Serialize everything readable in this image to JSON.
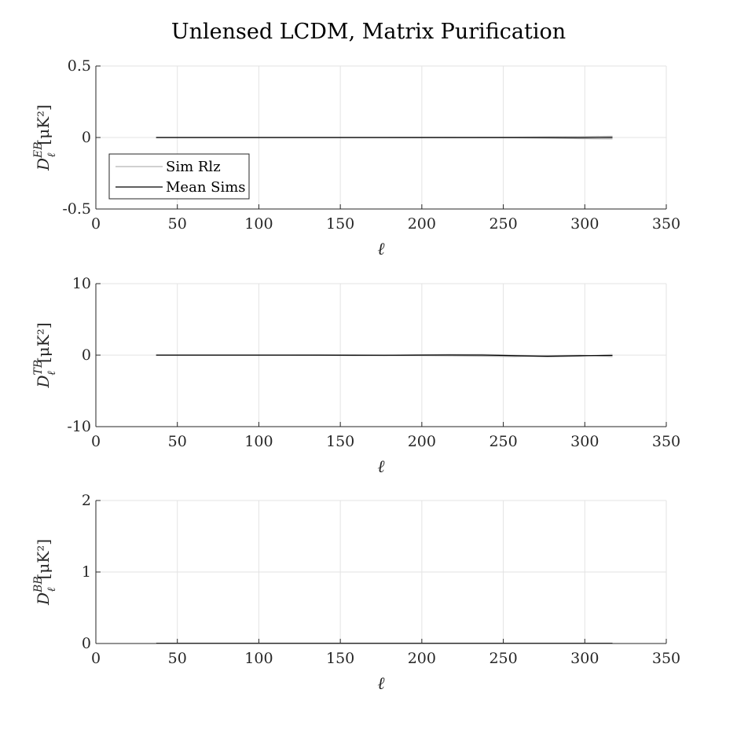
{
  "title": "Unlensed LCDM, Matrix Purification",
  "legend": {
    "placement": "inside-lower-left of top panel",
    "entries": [
      {
        "label": "Sim Rlz",
        "color": "#b3b3b3"
      },
      {
        "label": "Mean Sims",
        "color": "#000000"
      }
    ]
  },
  "colors": {
    "sim": "#b3b3b3",
    "mean": "#000000",
    "grid": "#e3e3e3",
    "axis": "#262626"
  },
  "chart_data": [
    {
      "type": "line",
      "xlabel": "ℓ",
      "ylabel_main": "D",
      "ylabel_sup": "EB",
      "ylabel_sub": "ℓ",
      "ylabel_unit": "[μK²]",
      "xlim": [
        0,
        350
      ],
      "ylim": [
        -0.5,
        0.5
      ],
      "grid": true,
      "xticks": [
        "0",
        "50",
        "100",
        "150",
        "200",
        "250",
        "300",
        "350"
      ],
      "yticks": [
        "-0.5",
        "0",
        "0.5"
      ],
      "ytick_values": [
        -0.5,
        0,
        0.5
      ],
      "x": [
        37,
        57,
        77,
        97,
        117,
        137,
        157,
        177,
        197,
        217,
        237,
        257,
        277,
        297,
        317
      ],
      "series": [
        {
          "name": "Sim Rlz",
          "values": [
            0,
            0,
            0,
            0,
            0,
            0,
            0,
            0,
            0.001,
            0.001,
            0,
            -0.002,
            -0.005,
            -0.008,
            -0.01
          ]
        },
        {
          "values": [
            0,
            0,
            0,
            0,
            0,
            0,
            0,
            0,
            -0.001,
            0,
            0.001,
            0.002,
            0.004,
            0.006,
            0.009
          ]
        },
        {
          "values": [
            0,
            0,
            0,
            0,
            0,
            0,
            0,
            0,
            0,
            -0.001,
            -0.001,
            0,
            0.002,
            -0.003,
            0.004
          ]
        },
        {
          "name": "Mean Sims",
          "values": [
            0,
            0,
            0,
            0,
            0,
            0,
            0,
            0,
            0,
            0,
            0,
            0,
            0,
            -0.001,
            0
          ]
        }
      ]
    },
    {
      "type": "line",
      "xlabel": "ℓ",
      "ylabel_main": "D",
      "ylabel_sup": "TB",
      "ylabel_sub": "ℓ",
      "ylabel_unit": "[μK²]",
      "xlim": [
        0,
        350
      ],
      "ylim": [
        -10,
        10
      ],
      "grid": true,
      "xticks": [
        "0",
        "50",
        "100",
        "150",
        "200",
        "250",
        "300",
        "350"
      ],
      "yticks": [
        "-10",
        "0",
        "10"
      ],
      "ytick_values": [
        -10,
        0,
        10
      ],
      "x": [
        37,
        57,
        77,
        97,
        117,
        137,
        157,
        177,
        197,
        217,
        237,
        257,
        277,
        297,
        317
      ],
      "series": [
        {
          "values": [
            0,
            0,
            0,
            0,
            0,
            -0.02,
            -0.05,
            -0.05,
            0.05,
            0.1,
            0.05,
            -0.1,
            -0.25,
            -0.15,
            0.1
          ]
        },
        {
          "values": [
            0,
            0,
            0,
            0,
            0,
            0.02,
            0,
            -0.05,
            -0.05,
            -0.1,
            -0.15,
            -0.2,
            -0.1,
            0,
            -0.2
          ]
        },
        {
          "values": [
            0,
            0,
            0,
            0,
            0,
            0,
            0.03,
            0.02,
            0,
            0.05,
            0.1,
            0,
            -0.15,
            -0.1,
            -0.05
          ]
        },
        {
          "values": [
            0,
            0,
            0,
            0,
            0,
            0,
            -0.01,
            -0.02,
            0,
            0.01,
            0,
            -0.08,
            -0.15,
            -0.08,
            -0.05
          ]
        }
      ]
    },
    {
      "type": "line",
      "xlabel": "ℓ",
      "ylabel_main": "D",
      "ylabel_sup": "BB",
      "ylabel_sub": "ℓ",
      "ylabel_unit": "[μK²]",
      "xlim": [
        0,
        350
      ],
      "ylim": [
        0,
        2
      ],
      "grid": true,
      "xticks": [
        "0",
        "50",
        "100",
        "150",
        "200",
        "250",
        "300",
        "350"
      ],
      "yticks": [
        "0",
        "1",
        "2"
      ],
      "ytick_values": [
        0,
        1,
        2
      ],
      "x": [
        37,
        57,
        77,
        97,
        117,
        137,
        157,
        177,
        197,
        217,
        237,
        257,
        277,
        297,
        317
      ],
      "series": [
        {
          "values": [
            0.002,
            0.002,
            0.002,
            0.002,
            0.002,
            0.002,
            0.002,
            0.002,
            0.002,
            0.002,
            0.002,
            0.002,
            0.002,
            0.002,
            0.002
          ]
        },
        {
          "values": [
            0.001,
            0.001,
            0.001,
            0.001,
            0.001,
            0.001,
            0.001,
            0.001,
            0.001,
            0.001,
            0.001,
            0.001,
            0.001,
            0.001,
            0.001
          ]
        },
        {
          "values": [
            0.002,
            0.002,
            0.002,
            0.002,
            0.002,
            0.002,
            0.002,
            0.002,
            0.002,
            0.002,
            0.002,
            0.002,
            0.002,
            0.002,
            0.002
          ]
        },
        {
          "values": [
            0.002,
            0.002,
            0.002,
            0.002,
            0.002,
            0.002,
            0.002,
            0.002,
            0.002,
            0.002,
            0.002,
            0.002,
            0.002,
            0.002,
            0.002
          ]
        }
      ]
    }
  ]
}
